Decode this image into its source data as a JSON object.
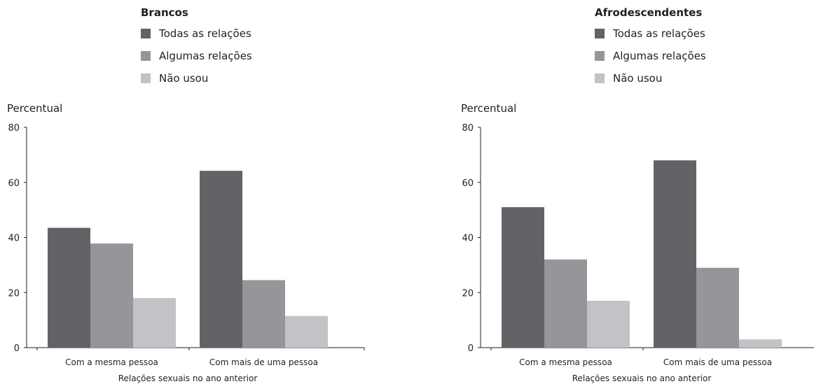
{
  "chart_data": [
    {
      "type": "bar",
      "legend_title": "Brancos",
      "ylabel": "Percentual",
      "xlabel": "Relações sexuais no ano anterior",
      "categories": [
        "Com a mesma pessoa",
        "Com mais de uma pessoa"
      ],
      "ylim": [
        0,
        80
      ],
      "yticks": [
        0,
        20,
        40,
        60,
        80
      ],
      "grid": false,
      "legend_position": "top",
      "series": [
        {
          "name": "Todas as relações",
          "color": "#636367",
          "values": [
            43.5,
            64.2
          ]
        },
        {
          "name": "Algumas relações",
          "color": "#96969a",
          "values": [
            37.8,
            24.5
          ]
        },
        {
          "name": "Não usou",
          "color": "#c3c3c7",
          "values": [
            18.0,
            11.5
          ]
        }
      ]
    },
    {
      "type": "bar",
      "legend_title": "Afrodescendentes",
      "ylabel": "Percentual",
      "xlabel": "Relações sexuais no ano anterior",
      "categories": [
        "Com a mesma pessoa",
        "Com mais de uma pessoa"
      ],
      "ylim": [
        0,
        80
      ],
      "yticks": [
        0,
        20,
        40,
        60,
        80
      ],
      "grid": false,
      "legend_position": "top",
      "series": [
        {
          "name": "Todas as relações",
          "color": "#636367",
          "values": [
            51.0,
            68.0
          ]
        },
        {
          "name": "Algumas relações",
          "color": "#96969a",
          "values": [
            32.0,
            29.0
          ]
        },
        {
          "name": "Não usou",
          "color": "#c3c3c7",
          "values": [
            17.0,
            3.0
          ]
        }
      ]
    }
  ]
}
